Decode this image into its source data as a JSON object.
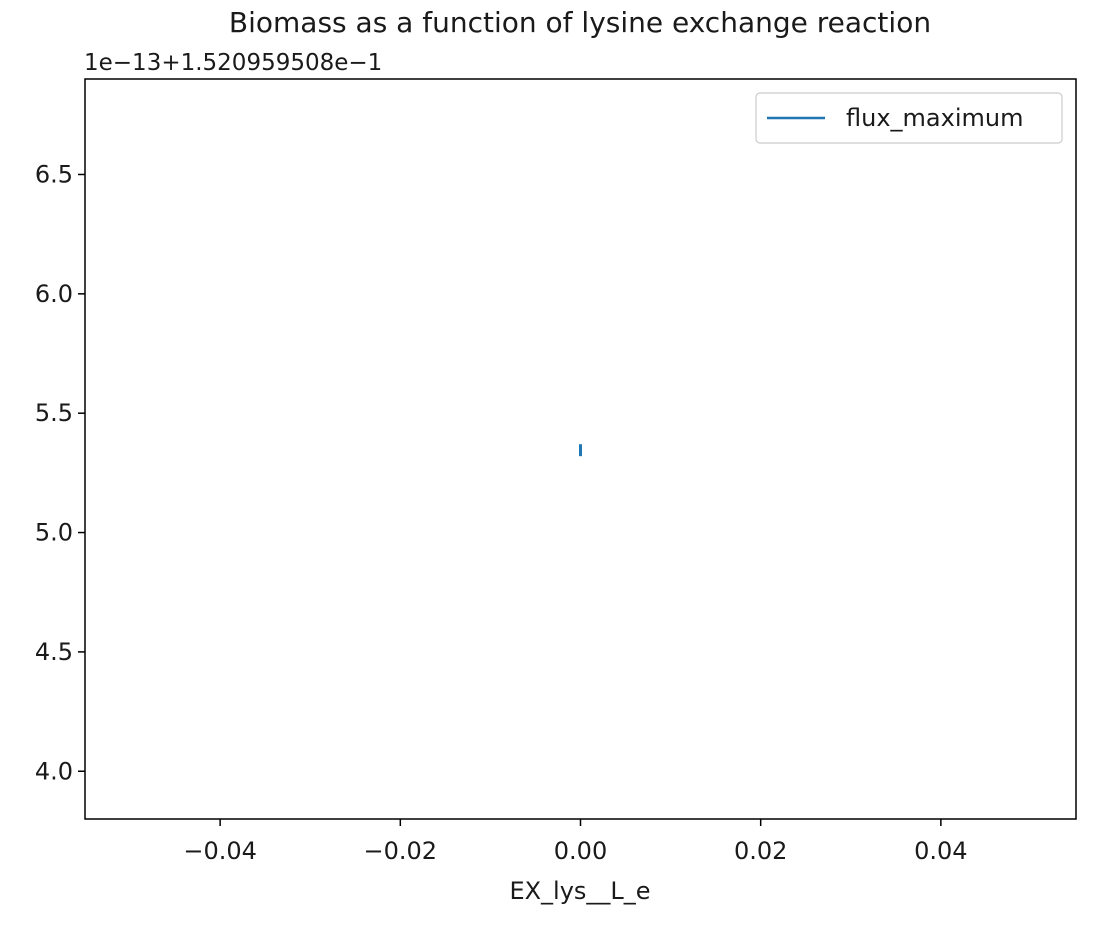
{
  "chart_data": {
    "type": "line",
    "title": "Biomass as a function of lysine exchange reaction",
    "xlabel": "EX_lys__L_e",
    "ylabel": "",
    "y_offset_label": "1e−13+1.520959508e−1",
    "xlim": [
      -0.055,
      0.055
    ],
    "ylim": [
      3.8,
      6.9
    ],
    "x_ticks": [
      -0.04,
      -0.02,
      0.0,
      0.02,
      0.04
    ],
    "x_tick_labels": [
      "−0.04",
      "−0.02",
      "0.00",
      "0.02",
      "0.04"
    ],
    "y_ticks": [
      4.0,
      4.5,
      5.0,
      5.5,
      6.0,
      6.5
    ],
    "y_tick_labels": [
      "4.0",
      "4.5",
      "5.0",
      "5.5",
      "6.0",
      "6.5"
    ],
    "series": [
      {
        "name": "flux_maximum",
        "color": "#1f77b4",
        "x": [
          0.0,
          0.0
        ],
        "y": [
          5.32,
          5.37
        ]
      }
    ],
    "legend": {
      "position": "top-right",
      "entries": [
        "flux_maximum"
      ]
    },
    "grid": false
  }
}
